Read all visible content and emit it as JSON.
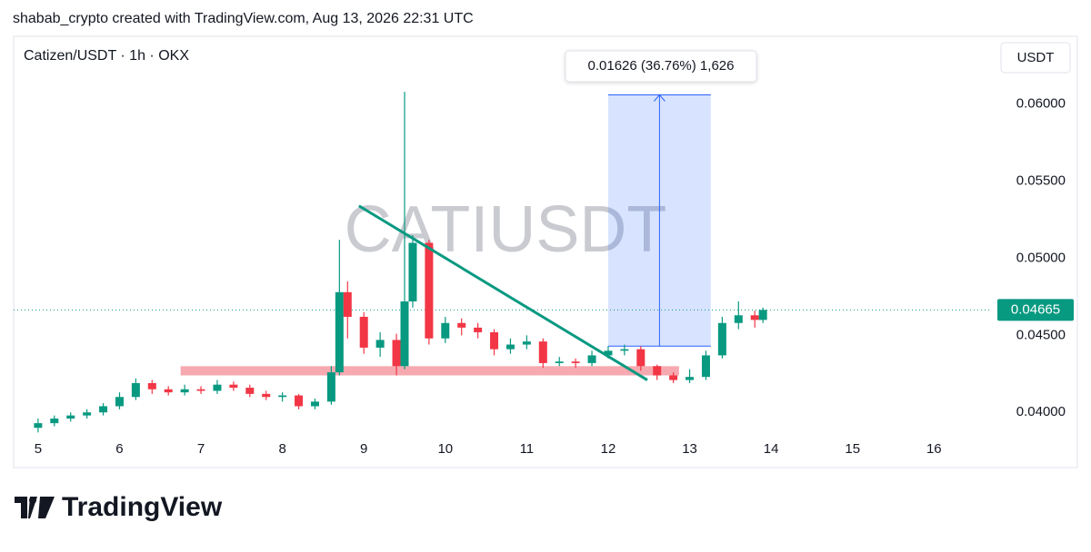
{
  "header": "shabab_crypto created with TradingView.com, Aug 13, 2026 22:31 UTC",
  "logo": "TradingView",
  "chart_data": {
    "type": "candlestick",
    "title": "Catizen/USDT · 1h · OKX",
    "watermark": "CATIUSDT",
    "currency": "USDT",
    "up_color": "#089981",
    "down_color": "#f23645",
    "xlim": [
      4.7,
      16.7
    ],
    "xticks": [
      5,
      6,
      7,
      8,
      9,
      10,
      11,
      12,
      13,
      14,
      15,
      16
    ],
    "ylim": [
      0.0386,
      0.0644
    ],
    "yticks": [
      {
        "value": 0.04,
        "label": "0.04000"
      },
      {
        "value": 0.045,
        "label": "0.04500"
      },
      {
        "value": 0.05,
        "label": "0.05000"
      },
      {
        "value": 0.055,
        "label": "0.05500"
      },
      {
        "value": 0.06,
        "label": "0.06000"
      }
    ],
    "x": [
      5.0,
      5.2,
      5.4,
      5.6,
      5.8,
      6.0,
      6.2,
      6.4,
      6.6,
      6.8,
      7.0,
      7.2,
      7.4,
      7.6,
      7.8,
      8.0,
      8.2,
      8.4,
      8.6,
      8.7,
      8.8,
      9.0,
      9.2,
      9.4,
      9.5,
      9.6,
      9.8,
      10.0,
      10.2,
      10.4,
      10.6,
      10.8,
      11.0,
      11.2,
      11.4,
      11.6,
      11.8,
      12.0,
      12.2,
      12.4,
      12.6,
      12.8,
      13.0,
      13.2,
      13.4,
      13.6,
      13.8,
      13.9
    ],
    "open": [
      0.039,
      0.0393,
      0.0396,
      0.0398,
      0.04,
      0.0404,
      0.041,
      0.0419,
      0.0415,
      0.0413,
      0.0415,
      0.0414,
      0.0418,
      0.0416,
      0.0412,
      0.041,
      0.0411,
      0.0404,
      0.0407,
      0.0426,
      0.0478,
      0.0462,
      0.0442,
      0.0447,
      0.043,
      0.0472,
      0.051,
      0.0448,
      0.0458,
      0.0455,
      0.0452,
      0.0441,
      0.0444,
      0.0446,
      0.0432,
      0.0433,
      0.0432,
      0.0437,
      0.044,
      0.0441,
      0.043,
      0.0424,
      0.0421,
      0.0423,
      0.0437,
      0.0458,
      0.0463,
      0.046
    ],
    "high": [
      0.0396,
      0.0398,
      0.04,
      0.0402,
      0.0406,
      0.0413,
      0.0422,
      0.0421,
      0.0417,
      0.0418,
      0.0417,
      0.0421,
      0.042,
      0.0418,
      0.0414,
      0.0413,
      0.0412,
      0.0409,
      0.043,
      0.0512,
      0.0485,
      0.0465,
      0.0452,
      0.0451,
      0.0608,
      0.0515,
      0.0512,
      0.0462,
      0.0461,
      0.0458,
      0.0454,
      0.0448,
      0.045,
      0.0448,
      0.0436,
      0.0435,
      0.044,
      0.0443,
      0.0444,
      0.0443,
      0.0431,
      0.0426,
      0.0428,
      0.044,
      0.0462,
      0.0472,
      0.0466,
      0.0468
    ],
    "low": [
      0.0387,
      0.0391,
      0.0394,
      0.0396,
      0.0398,
      0.0402,
      0.0408,
      0.0412,
      0.0411,
      0.0411,
      0.0412,
      0.0412,
      0.0414,
      0.041,
      0.0408,
      0.0407,
      0.0402,
      0.0402,
      0.0405,
      0.0424,
      0.0448,
      0.0438,
      0.0436,
      0.0424,
      0.0428,
      0.0468,
      0.0444,
      0.0445,
      0.045,
      0.0448,
      0.0437,
      0.0438,
      0.0441,
      0.0429,
      0.043,
      0.0429,
      0.043,
      0.0435,
      0.0437,
      0.0427,
      0.0421,
      0.0419,
      0.0419,
      0.0421,
      0.0435,
      0.0454,
      0.0455,
      0.0458
    ],
    "close": [
      0.0393,
      0.0396,
      0.0398,
      0.04,
      0.0404,
      0.041,
      0.0419,
      0.0415,
      0.0413,
      0.0415,
      0.0414,
      0.0418,
      0.0416,
      0.0412,
      0.041,
      0.0411,
      0.0404,
      0.0407,
      0.0426,
      0.0478,
      0.0462,
      0.0442,
      0.0447,
      0.043,
      0.0472,
      0.051,
      0.0448,
      0.0458,
      0.0455,
      0.0452,
      0.0441,
      0.0444,
      0.0446,
      0.0432,
      0.0433,
      0.0432,
      0.0437,
      0.044,
      0.0441,
      0.043,
      0.0424,
      0.0421,
      0.0423,
      0.0437,
      0.0458,
      0.0463,
      0.046,
      0.04665
    ],
    "last_price": 0.04665,
    "support_zone": {
      "x": [
        6.75,
        12.87
      ],
      "y": [
        0.0424,
        0.043
      ],
      "color": "#f7a9b0"
    },
    "trendline": {
      "x": [
        8.94,
        12.48
      ],
      "y": [
        0.0534,
        0.0421
      ],
      "color": "#089981"
    },
    "measure": {
      "x": [
        12.0,
        13.26
      ],
      "y": [
        0.0443,
        0.0606
      ],
      "color": "#2962ff",
      "label": "0.01626 (36.76%) 1,626"
    }
  }
}
